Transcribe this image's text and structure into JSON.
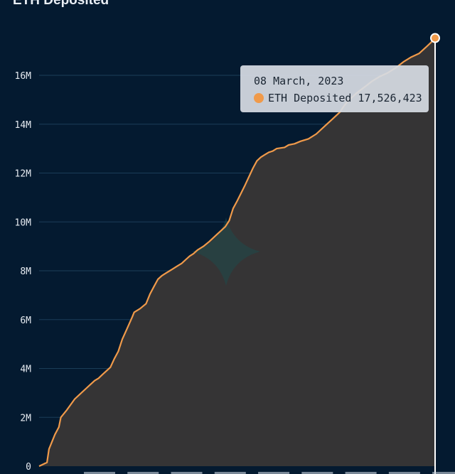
{
  "chart_data": {
    "type": "area",
    "title": "ETH Deposited",
    "xlabel": "",
    "ylabel": "",
    "ylim": [
      0,
      18000000
    ],
    "yticks": [
      0,
      2000000,
      4000000,
      6000000,
      8000000,
      10000000,
      12000000,
      14000000,
      16000000
    ],
    "ytick_labels": [
      "0",
      "2M",
      "4M",
      "6M",
      "8M",
      "10M",
      "12M",
      "14M",
      "16M"
    ],
    "xlim": [
      0,
      100
    ],
    "grid": true,
    "series": [
      {
        "name": "ETH Deposited",
        "color": "#f09a4a",
        "x": [
          0,
          2,
          2.5,
          4,
          5,
          5.5,
          7,
          9,
          10,
          12,
          14,
          15,
          16,
          18,
          19,
          20,
          21,
          22,
          23.5,
          24,
          25.5,
          27,
          28,
          29,
          30,
          31,
          32,
          33,
          33.5,
          35,
          36,
          37,
          38,
          39,
          40,
          41.5,
          43,
          44,
          45,
          46,
          47,
          48,
          49,
          50,
          52,
          54,
          55,
          56,
          57,
          58,
          59,
          59.5,
          60,
          62,
          63,
          64.5,
          66,
          68,
          70,
          72,
          74,
          76,
          77,
          78,
          80,
          82,
          84,
          86,
          88,
          90,
          92,
          94,
          96,
          97,
          98,
          99,
          99.5,
          100
        ],
        "values": [
          0,
          150000,
          700000,
          1300000,
          1600000,
          2000000,
          2300000,
          2750000,
          2900000,
          3200000,
          3500000,
          3600000,
          3750000,
          4050000,
          4400000,
          4700000,
          5200000,
          5550000,
          6100000,
          6300000,
          6450000,
          6650000,
          7050000,
          7350000,
          7650000,
          7800000,
          7900000,
          8000000,
          8050000,
          8200000,
          8300000,
          8450000,
          8600000,
          8700000,
          8850000,
          9000000,
          9200000,
          9350000,
          9500000,
          9650000,
          9800000,
          10050000,
          10550000,
          10850000,
          11500000,
          12200000,
          12500000,
          12650000,
          12750000,
          12850000,
          12900000,
          12950000,
          13000000,
          13050000,
          13150000,
          13200000,
          13300000,
          13400000,
          13600000,
          13900000,
          14200000,
          14500000,
          14750000,
          14950000,
          15250000,
          15500000,
          15750000,
          15950000,
          16100000,
          16300000,
          16550000,
          16750000,
          16900000,
          17050000,
          17200000,
          17350000,
          17450000,
          17526423
        ]
      }
    ],
    "tooltip": {
      "date": "08 March, 2023",
      "series": "ETH Deposited",
      "value": "17,526,423"
    }
  },
  "colors": {
    "background": "#041a30",
    "area_fill": "#353435",
    "line": "#f09a4a",
    "grid": "#1b3d58",
    "watermark": "#1d4a4a"
  },
  "watermark_icon": "star-logo-icon"
}
